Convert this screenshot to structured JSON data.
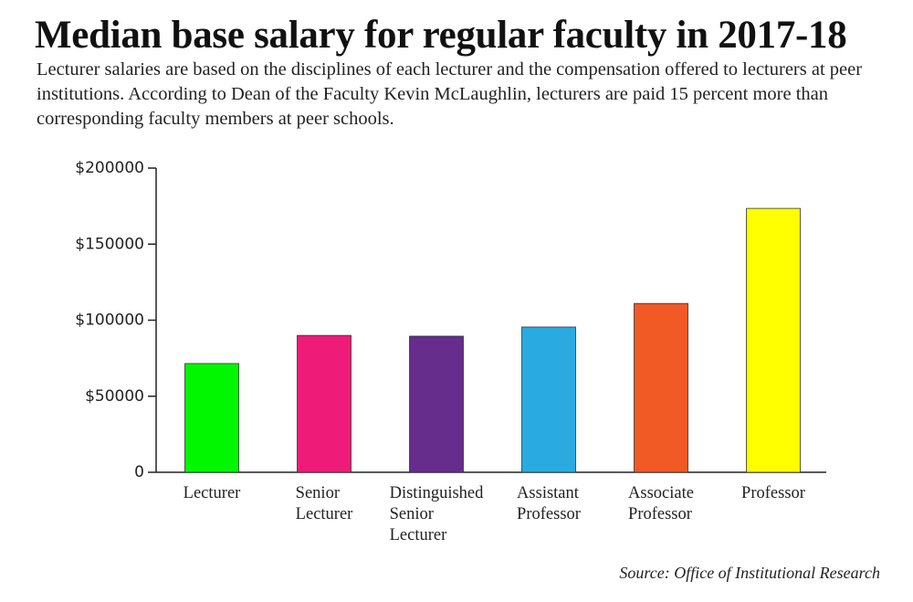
{
  "chart_data": {
    "type": "bar",
    "title": "Median base salary for regular faculty in 2017-18",
    "subtitle": "Lecturer salaries are based on the disciplines of each lecturer and the compensation offered to lecturers at peer institutions. According to Dean of the Faculty Kevin McLaughlin, lecturers are paid 15 percent more than corresponding faculty members at peer schools.",
    "source": "Source: Office of Institutional Research",
    "categories": [
      "Lecturer",
      "Senior Lecturer",
      "Distinguished Senior Lecturer",
      "Assistant Professor",
      "Associate Professor",
      "Professor"
    ],
    "values": [
      71500,
      90000,
      89500,
      95500,
      111000,
      173500
    ],
    "colors": [
      "#00f700",
      "#ee1c78",
      "#662d8c",
      "#29abe2",
      "#f15a24",
      "#ffff00"
    ],
    "ylim": [
      0,
      200000
    ],
    "yticks": [
      0,
      {
        "value": 50000,
        "label": "$50000"
      },
      {
        "value": 100000,
        "label": "$100000"
      },
      {
        "value": 150000,
        "label": "$150000"
      },
      {
        "value": 200000,
        "label": "$200000"
      }
    ],
    "grid": false
  }
}
